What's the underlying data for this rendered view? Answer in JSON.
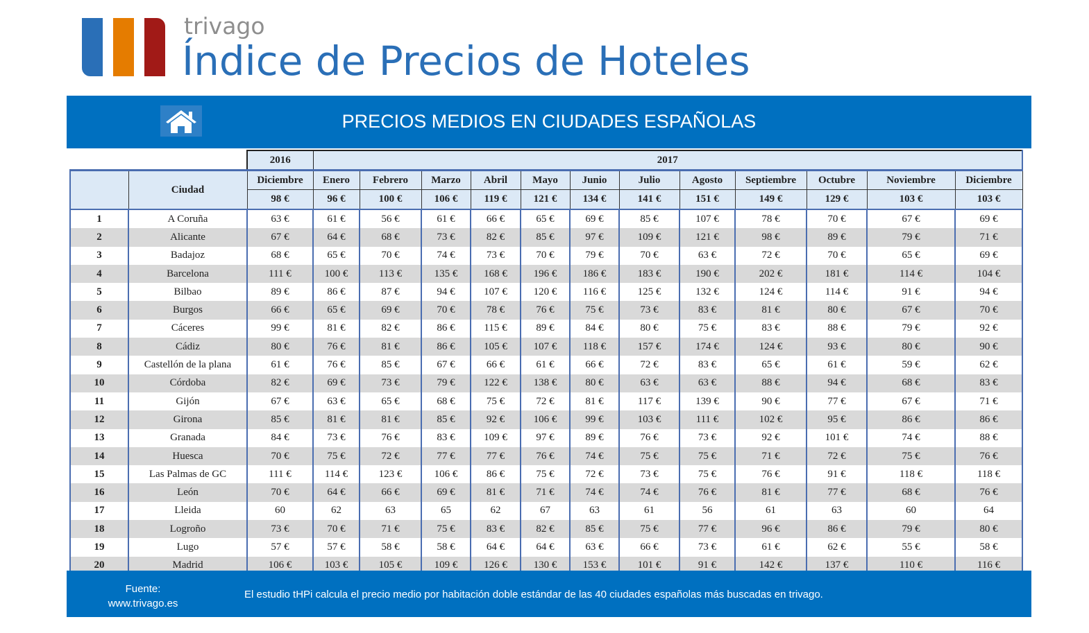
{
  "header": {
    "brand": "trivago",
    "title": "Índice de Precios de Hoteles",
    "logo_colors": [
      "#2a6fb7",
      "#e57c00",
      "#a11a17"
    ]
  },
  "banner": {
    "icon": "home-icon",
    "title": "PRECIOS MEDIOS EN CIUDADES ESPAÑOLAS"
  },
  "table": {
    "years": [
      "2016",
      "2017"
    ],
    "city_header": "Ciudad",
    "months": [
      "Diciembre",
      "Enero",
      "Febrero",
      "Marzo",
      "Abril",
      "Mayo",
      "Junio",
      "Julio",
      "Agosto",
      "Septiembre",
      "Octubre",
      "Noviembre",
      "Diciembre"
    ],
    "averages": [
      "98 €",
      "96 €",
      "100 €",
      "106 €",
      "119 €",
      "121 €",
      "134 €",
      "141 €",
      "151 €",
      "149 €",
      "129 €",
      "103 €",
      "103 €"
    ],
    "rows": [
      {
        "rank": "1",
        "city": "A Coruña",
        "values": [
          "63 €",
          "61 €",
          "56 €",
          "61 €",
          "66 €",
          "65 €",
          "69 €",
          "85 €",
          "107 €",
          "78 €",
          "70 €",
          "67 €",
          "69 €"
        ]
      },
      {
        "rank": "2",
        "city": "Alicante",
        "values": [
          "67 €",
          "64 €",
          "68 €",
          "73 €",
          "82 €",
          "85 €",
          "97 €",
          "109 €",
          "121 €",
          "98 €",
          "89 €",
          "79 €",
          "71 €"
        ]
      },
      {
        "rank": "3",
        "city": "Badajoz",
        "values": [
          "68 €",
          "65 €",
          "70 €",
          "74 €",
          "73 €",
          "70 €",
          "79 €",
          "70 €",
          "63 €",
          "72 €",
          "70 €",
          "65 €",
          "69 €"
        ]
      },
      {
        "rank": "4",
        "city": "Barcelona",
        "values": [
          "111 €",
          "100 €",
          "113 €",
          "135 €",
          "168 €",
          "196 €",
          "186 €",
          "183 €",
          "190 €",
          "202 €",
          "181 €",
          "114 €",
          "104 €"
        ]
      },
      {
        "rank": "5",
        "city": "Bilbao",
        "values": [
          "89 €",
          "86 €",
          "87 €",
          "94 €",
          "107 €",
          "120 €",
          "116 €",
          "125 €",
          "132 €",
          "124 €",
          "114 €",
          "91 €",
          "94 €"
        ]
      },
      {
        "rank": "6",
        "city": "Burgos",
        "values": [
          "66 €",
          "65 €",
          "69 €",
          "70 €",
          "78 €",
          "76 €",
          "75 €",
          "73 €",
          "83 €",
          "81 €",
          "80 €",
          "67 €",
          "70 €"
        ]
      },
      {
        "rank": "7",
        "city": "Cáceres",
        "values": [
          "99 €",
          "81 €",
          "82 €",
          "86 €",
          "115 €",
          "89 €",
          "84 €",
          "80 €",
          "75 €",
          "83 €",
          "88 €",
          "79 €",
          "92 €"
        ]
      },
      {
        "rank": "8",
        "city": "Cádiz",
        "values": [
          "80 €",
          "76 €",
          "81 €",
          "86 €",
          "105 €",
          "107 €",
          "118 €",
          "157 €",
          "174 €",
          "124 €",
          "93 €",
          "80 €",
          "90 €"
        ]
      },
      {
        "rank": "9",
        "city": "Castellón de la plana",
        "values": [
          "61 €",
          "76 €",
          "85 €",
          "67 €",
          "66 €",
          "61 €",
          "66 €",
          "72 €",
          "83 €",
          "65 €",
          "61 €",
          "59 €",
          "62 €"
        ]
      },
      {
        "rank": "10",
        "city": "Córdoba",
        "values": [
          "82 €",
          "69 €",
          "73 €",
          "79 €",
          "122 €",
          "138 €",
          "80 €",
          "63 €",
          "63 €",
          "88 €",
          "94 €",
          "68 €",
          "83 €"
        ]
      },
      {
        "rank": "11",
        "city": "Gijón",
        "values": [
          "67 €",
          "63 €",
          "65 €",
          "68 €",
          "75 €",
          "72 €",
          "81 €",
          "117 €",
          "139 €",
          "90 €",
          "77 €",
          "67 €",
          "71 €"
        ]
      },
      {
        "rank": "12",
        "city": "Girona",
        "values": [
          "85 €",
          "81 €",
          "81 €",
          "85 €",
          "92 €",
          "106 €",
          "99 €",
          "103 €",
          "111 €",
          "102 €",
          "95 €",
          "86 €",
          "86 €"
        ]
      },
      {
        "rank": "13",
        "city": "Granada",
        "values": [
          "84 €",
          "73 €",
          "76 €",
          "83 €",
          "109 €",
          "97 €",
          "89 €",
          "76 €",
          "73 €",
          "92 €",
          "101 €",
          "74 €",
          "88 €"
        ]
      },
      {
        "rank": "14",
        "city": "Huesca",
        "values": [
          "70 €",
          "75 €",
          "72 €",
          "77 €",
          "77 €",
          "76 €",
          "74 €",
          "75 €",
          "75 €",
          "71 €",
          "72 €",
          "75 €",
          "76 €"
        ]
      },
      {
        "rank": "15",
        "city": "Las Palmas de GC",
        "values": [
          "111 €",
          "114 €",
          "123 €",
          "106 €",
          "86 €",
          "75 €",
          "72 €",
          "73 €",
          "75 €",
          "76 €",
          "91 €",
          "118 €",
          "118 €"
        ]
      },
      {
        "rank": "16",
        "city": "León",
        "values": [
          "70 €",
          "64 €",
          "66 €",
          "69 €",
          "81 €",
          "71 €",
          "74 €",
          "74 €",
          "76 €",
          "81 €",
          "77 €",
          "68 €",
          "76 €"
        ]
      },
      {
        "rank": "17",
        "city": "Lleida",
        "values": [
          "60",
          "62",
          "63",
          "65",
          "62",
          "67",
          "63",
          "61",
          "56",
          "61",
          "63",
          "60",
          "64"
        ]
      },
      {
        "rank": "18",
        "city": "Logroño",
        "values": [
          "73 €",
          "70 €",
          "71 €",
          "75 €",
          "83 €",
          "82 €",
          "85 €",
          "75 €",
          "77 €",
          "96 €",
          "86 €",
          "79 €",
          "80 €"
        ]
      },
      {
        "rank": "19",
        "city": "Lugo",
        "values": [
          "57 €",
          "57 €",
          "58 €",
          "58 €",
          "64 €",
          "64 €",
          "63 €",
          "66 €",
          "73 €",
          "61 €",
          "62 €",
          "55 €",
          "58 €"
        ]
      },
      {
        "rank": "20",
        "city": "Madrid",
        "values": [
          "106 €",
          "103 €",
          "105 €",
          "109 €",
          "126 €",
          "130 €",
          "153 €",
          "101 €",
          "91 €",
          "142 €",
          "137 €",
          "110 €",
          "116 €"
        ]
      }
    ]
  },
  "footer": {
    "source_label": "Fuente:",
    "source_url": "www.trivago.es",
    "note": "El estudio tHPi calcula el precio medio por habitación doble estándar de las 40 ciudades españolas más buscadas en trivago."
  }
}
